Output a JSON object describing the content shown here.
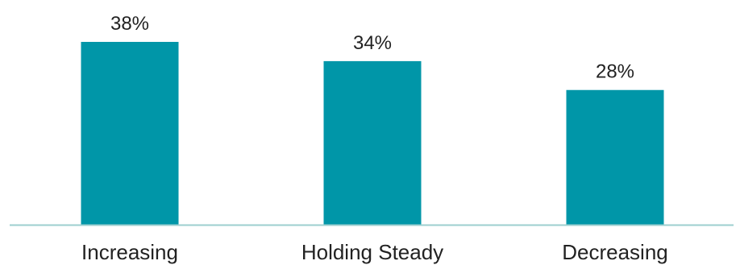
{
  "chart_data": {
    "type": "bar",
    "categories": [
      "Increasing",
      "Holding Steady",
      "Decreasing"
    ],
    "values": [
      38,
      34,
      28
    ],
    "value_labels": [
      "38%",
      "34%",
      "28%"
    ],
    "unit": "%",
    "title": "",
    "xlabel": "",
    "ylabel": "",
    "ylim": [
      0,
      38
    ],
    "grid": false,
    "legend": "none",
    "colors": {
      "bar": "#0096A8",
      "baseline": "#9DCFCF",
      "text": "#222222"
    }
  }
}
